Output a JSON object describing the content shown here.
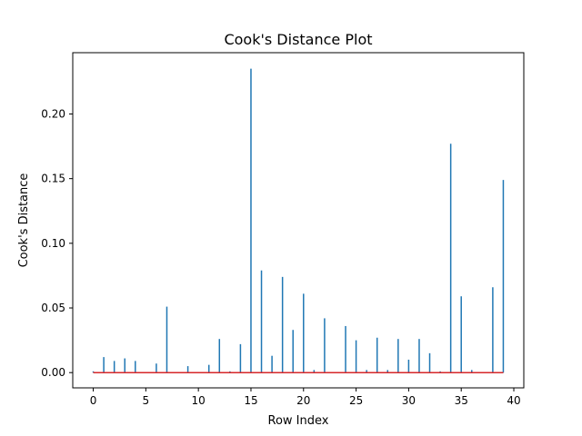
{
  "chart_data": {
    "type": "bar",
    "subtype": "stem",
    "title": "Cook's Distance Plot",
    "xlabel": "Row Index",
    "ylabel": "Cook's Distance",
    "xlim": [
      -1.95,
      40.95
    ],
    "ylim": [
      -0.0118,
      0.2474
    ],
    "xticks": [
      0,
      5,
      10,
      15,
      20,
      25,
      30,
      35,
      40
    ],
    "yticks": [
      0.0,
      0.05,
      0.1,
      0.15,
      0.2
    ],
    "ytick_labels": [
      "0.00",
      "0.05",
      "0.10",
      "0.15",
      "0.20"
    ],
    "grid": false,
    "stem_color": "#1f77b4",
    "baseline_color": "#d62728",
    "baseline_value": 0,
    "x": [
      0,
      1,
      2,
      3,
      4,
      5,
      6,
      7,
      8,
      9,
      10,
      11,
      12,
      13,
      14,
      15,
      16,
      17,
      18,
      19,
      20,
      21,
      22,
      23,
      24,
      25,
      26,
      27,
      28,
      29,
      30,
      31,
      32,
      33,
      34,
      35,
      36,
      37,
      38,
      39
    ],
    "values": [
      0.001,
      0.012,
      0.009,
      0.011,
      0.009,
      0.0,
      0.007,
      0.051,
      0.0,
      0.005,
      0.0,
      0.006,
      0.026,
      0.001,
      0.022,
      0.235,
      0.079,
      0.013,
      0.074,
      0.033,
      0.061,
      0.002,
      0.042,
      0.0,
      0.036,
      0.025,
      0.002,
      0.027,
      0.002,
      0.026,
      0.01,
      0.026,
      0.015,
      0.001,
      0.177,
      0.059,
      0.002,
      0.0,
      0.066,
      0.149
    ]
  }
}
